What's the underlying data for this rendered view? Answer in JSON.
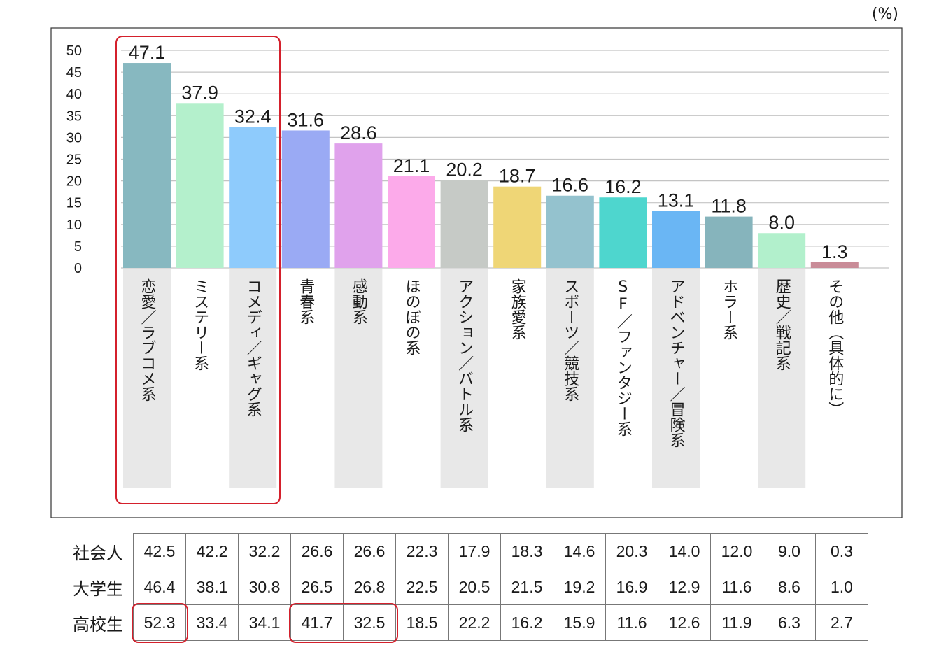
{
  "unit": "(%)",
  "chart_data": {
    "type": "bar",
    "categories": [
      "恋愛／ラブコメ系",
      "ミステリー系",
      "コメディ／ギャグ系",
      "青春系",
      "感動系",
      "ほのぼの系",
      "アクション／バトル系",
      "家族愛系",
      "スポーツ／競技系",
      "SF／ファンタジー系",
      "アドベンチャー／冒険系",
      "ホラー系",
      "歴史／戦記系",
      "その他（具体的に）"
    ],
    "values": [
      47.1,
      37.9,
      32.4,
      31.6,
      28.6,
      21.1,
      20.2,
      18.7,
      16.6,
      16.2,
      13.1,
      11.8,
      8.0,
      1.3
    ],
    "value_labels": [
      "47.1",
      "37.9",
      "32.4",
      "31.6",
      "28.6",
      "21.1",
      "20.2",
      "18.7",
      "16.6",
      "16.2",
      "13.1",
      "11.8",
      "8.0",
      "1.3"
    ],
    "colors": [
      "#87b8c0",
      "#b4f0cc",
      "#8ecbfc",
      "#9aaaf4",
      "#e0a2ec",
      "#fcaaea",
      "#c6cac6",
      "#efd676",
      "#94c2ce",
      "#4ed6ce",
      "#6ab6f4",
      "#86b4bc",
      "#b2f0cc",
      "#c98c98"
    ],
    "ylim": [
      0,
      50
    ],
    "yticks": [
      0,
      5,
      10,
      15,
      20,
      25,
      30,
      35,
      40,
      45,
      50
    ],
    "grid": true,
    "highlighted_categories": [
      0,
      1,
      2
    ]
  },
  "table": {
    "rows": [
      {
        "label": "社会人",
        "values": [
          "42.5",
          "42.2",
          "32.2",
          "26.6",
          "26.6",
          "22.3",
          "17.9",
          "18.3",
          "14.6",
          "20.3",
          "14.0",
          "12.0",
          "9.0",
          "0.3"
        ]
      },
      {
        "label": "大学生",
        "values": [
          "46.4",
          "38.1",
          "30.8",
          "26.5",
          "26.8",
          "22.5",
          "20.5",
          "21.5",
          "19.2",
          "16.9",
          "12.9",
          "11.6",
          "8.6",
          "1.0"
        ]
      },
      {
        "label": "高校生",
        "values": [
          "52.3",
          "33.4",
          "34.1",
          "41.7",
          "32.5",
          "18.5",
          "22.2",
          "16.2",
          "15.9",
          "11.6",
          "12.6",
          "11.9",
          "6.3",
          "2.7"
        ]
      }
    ],
    "highlighted_cells": [
      [
        2,
        0
      ],
      [
        2,
        3
      ],
      [
        2,
        4
      ]
    ]
  }
}
